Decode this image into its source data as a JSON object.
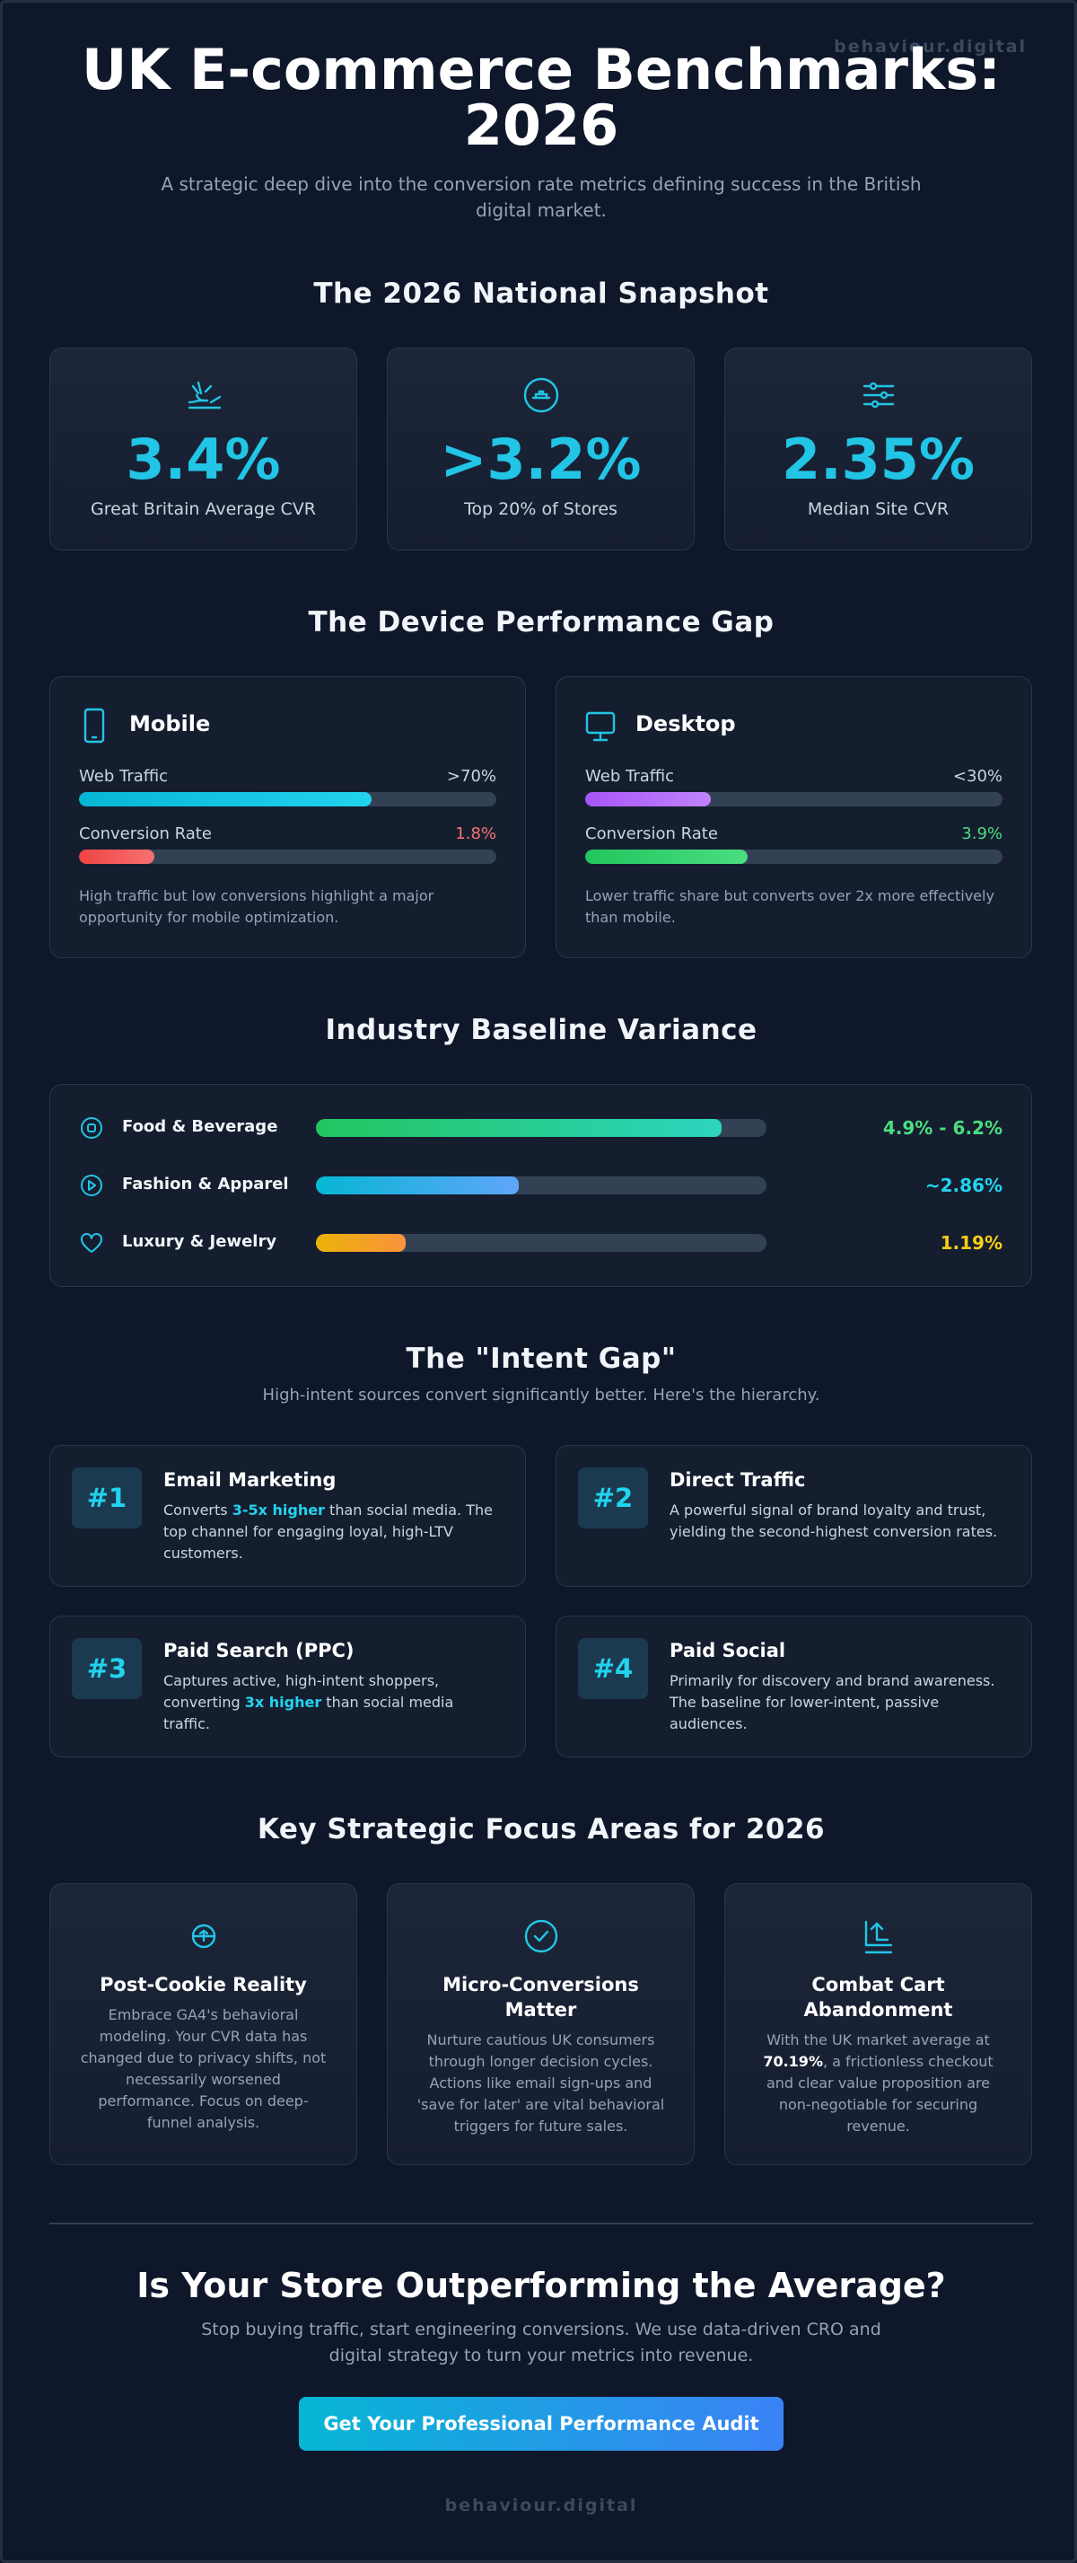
{
  "brand": "behaviour.digital",
  "hero": {
    "title_line1": "UK E-commerce Benchmarks:",
    "title_line2": "2026",
    "subtitle": "A strategic deep dive into the conversion rate metrics defining success in the British digital market."
  },
  "snapshot": {
    "title": "The 2026 National Snapshot",
    "cards": [
      {
        "icon": "hand-coins-icon",
        "value": "3.4%",
        "label": "Great Britain Average CVR"
      },
      {
        "icon": "trophy-badge-icon",
        "value": ">3.2%",
        "label": "Top 20% of Stores"
      },
      {
        "icon": "sliders-icon",
        "value": "2.35%",
        "label": "Median Site CVR"
      }
    ]
  },
  "devices": {
    "title": "The Device Performance Gap",
    "traffic_label": "Web Traffic",
    "conversion_label": "Conversion Rate",
    "mobile": {
      "name": "Mobile",
      "icon": "smartphone-icon",
      "traffic": ">70%",
      "traffic_fill": 0.7,
      "conversion": "1.8%",
      "conversion_fill": 0.18,
      "note": "High traffic but low conversions highlight a major opportunity for mobile optimization."
    },
    "desktop": {
      "name": "Desktop",
      "icon": "monitor-icon",
      "traffic": "<30%",
      "traffic_fill": 0.3,
      "conversion": "3.9%",
      "conversion_fill": 0.39,
      "note": "Lower traffic share but converts over 2x more effectively than mobile."
    }
  },
  "industry": {
    "title": "Industry Baseline Variance",
    "rows": [
      {
        "label": "Food & Beverage",
        "value": "4.9% - 6.2%",
        "fill": 0.9,
        "color": "#4ade80",
        "icon": "target-icon"
      },
      {
        "label": "Fashion & Apparel",
        "value": "~2.86%",
        "fill": 0.45,
        "color": "#22d3ee",
        "icon": "play-circle-icon"
      },
      {
        "label": "Luxury & Jewelry",
        "value": "1.19%",
        "fill": 0.2,
        "color": "#facc15",
        "icon": "heart-icon"
      }
    ]
  },
  "intent": {
    "title": "The \"Intent Gap\"",
    "subtitle": "High-intent sources convert significantly better. Here's the hierarchy.",
    "items": [
      {
        "rank": "#1",
        "title": "Email Marketing",
        "pre": "Converts ",
        "hl": "3-5x higher",
        "post": " than social media. The top channel for engaging loyal, high-LTV customers."
      },
      {
        "rank": "#2",
        "title": "Direct Traffic",
        "pre": "A powerful signal of brand loyalty and trust, yielding the second-highest conversion rates.",
        "hl": "",
        "post": ""
      },
      {
        "rank": "#3",
        "title": "Paid Search (PPC)",
        "pre": "Captures active, high-intent shoppers, converting ",
        "hl": "3x higher",
        "post": " than social media traffic."
      },
      {
        "rank": "#4",
        "title": "Paid Social",
        "pre": "Primarily for discovery and brand awareness. The baseline for lower-intent, passive audiences.",
        "hl": "",
        "post": ""
      }
    ]
  },
  "focus": {
    "title": "Key Strategic Focus Areas for 2026",
    "cards": [
      {
        "icon": "cookie-icon",
        "title": "Post-Cookie Reality",
        "pre": "Embrace GA4's behavioral modeling. Your CVR data has changed due to privacy shifts, not necessarily worsened performance. Focus on deep-funnel analysis.",
        "hl": "",
        "post": ""
      },
      {
        "icon": "check-circle-icon",
        "title": "Micro-Conversions Matter",
        "pre": "Nurture cautious UK consumers through longer decision cycles. Actions like email sign-ups and 'save for later' are vital behavioral triggers for future sales.",
        "hl": "",
        "post": ""
      },
      {
        "icon": "cart-return-icon",
        "title": "Combat Cart Abandonment",
        "pre": "With the UK market average at ",
        "hl": "70.19%",
        "post": ", a frictionless checkout and clear value proposition are non-negotiable for securing revenue."
      }
    ]
  },
  "cta": {
    "title": "Is Your Store Outperforming the Average?",
    "subtitle": "Stop buying traffic, start engineering conversions. We use data-driven CRO and digital strategy to turn your metrics into revenue.",
    "button": "Get Your Professional Performance Audit"
  },
  "colors": {
    "accent": "#22c5e6",
    "mobile_traffic": "#22d3ee",
    "mobile_conversion": "#f87171",
    "desktop_traffic": "#c084fc",
    "desktop_conversion": "#4ade80"
  }
}
